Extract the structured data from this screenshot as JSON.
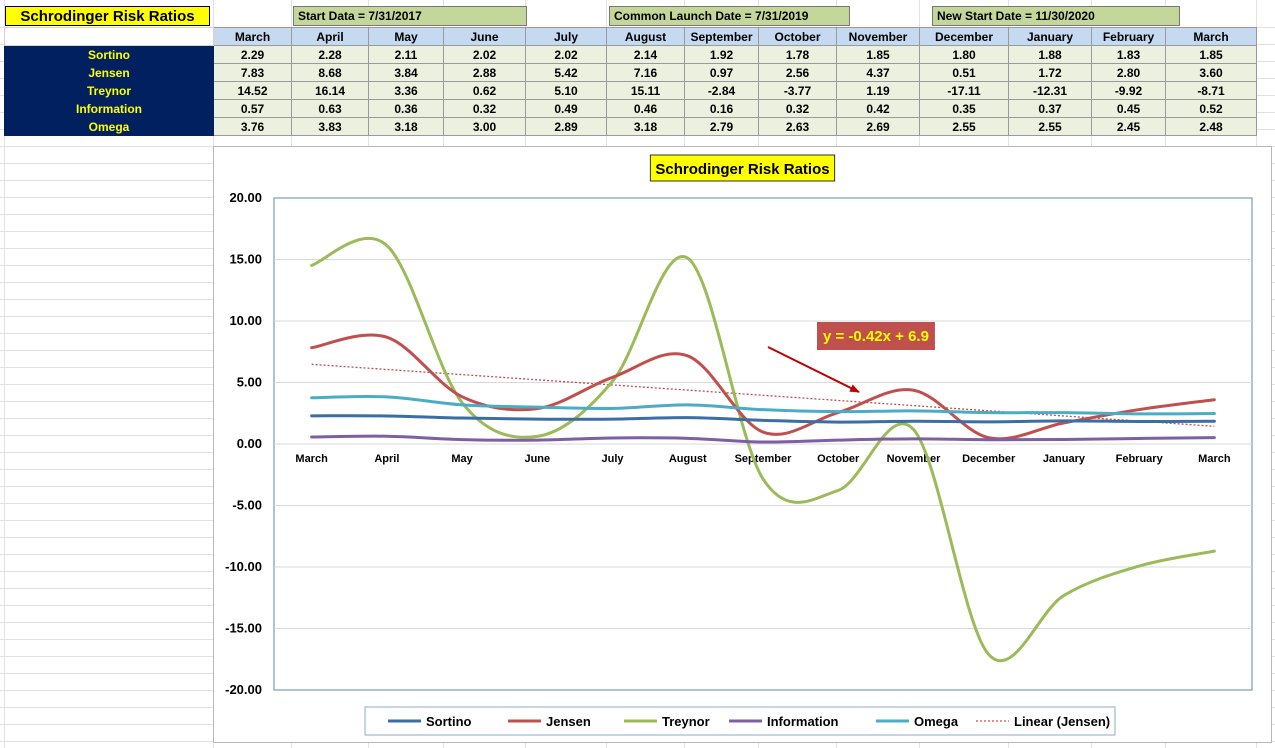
{
  "sheet": {
    "title": "Schrodinger Risk Ratios",
    "notes": {
      "start": "Start Data = 7/31/2017",
      "common": "Common Launch Date = 7/31/2019",
      "new": "New Start Date = 11/30/2020"
    },
    "colors": {
      "title_bg": "#ffff00",
      "note_bg": "#c4d79b",
      "month_header_bg": "#c5d9f1",
      "row_header_bg": "#002060",
      "row_header_text": "#ffff00",
      "cell_bg": "#ebf1de"
    }
  },
  "table": {
    "months": [
      "March",
      "April",
      "May",
      "June",
      "July",
      "August",
      "September",
      "October",
      "November",
      "December",
      "January",
      "February",
      "March"
    ],
    "rows": [
      {
        "label": "Sortino",
        "values": [
          "2.29",
          "2.28",
          "2.11",
          "2.02",
          "2.02",
          "2.14",
          "1.92",
          "1.78",
          "1.85",
          "1.80",
          "1.88",
          "1.83",
          "1.85"
        ]
      },
      {
        "label": "Jensen",
        "values": [
          "7.83",
          "8.68",
          "3.84",
          "2.88",
          "5.42",
          "7.16",
          "0.97",
          "2.56",
          "4.37",
          "0.51",
          "1.72",
          "2.80",
          "3.60"
        ]
      },
      {
        "label": "Treynor",
        "values": [
          "14.52",
          "16.14",
          "3.36",
          "0.62",
          "5.10",
          "15.11",
          "-2.84",
          "-3.77",
          "1.19",
          "-17.11",
          "-12.31",
          "-9.92",
          "-8.71"
        ]
      },
      {
        "label": "Information",
        "values": [
          "0.57",
          "0.63",
          "0.36",
          "0.32",
          "0.49",
          "0.46",
          "0.16",
          "0.32",
          "0.42",
          "0.35",
          "0.37",
          "0.45",
          "0.52"
        ]
      },
      {
        "label": "Omega",
        "values": [
          "3.76",
          "3.83",
          "3.18",
          "3.00",
          "2.89",
          "3.18",
          "2.79",
          "2.63",
          "2.69",
          "2.55",
          "2.55",
          "2.45",
          "2.48"
        ]
      }
    ]
  },
  "chart_data": {
    "type": "line",
    "title": "Schrodinger Risk Ratios",
    "categories": [
      "March",
      "April",
      "May",
      "June",
      "July",
      "August",
      "September",
      "October",
      "November",
      "December",
      "January",
      "February",
      "March"
    ],
    "ylim": [
      -20,
      20
    ],
    "y_ticks": [
      "20.00",
      "15.00",
      "10.00",
      "5.00",
      "0.00",
      "-5.00",
      "-10.00",
      "-15.00",
      "-20.00"
    ],
    "grid": "horizontal",
    "smooth": true,
    "legend_position": "bottom",
    "series": [
      {
        "name": "Sortino",
        "color": "#3a6ea5",
        "values": [
          2.29,
          2.28,
          2.11,
          2.02,
          2.02,
          2.14,
          1.92,
          1.78,
          1.85,
          1.8,
          1.88,
          1.83,
          1.85
        ]
      },
      {
        "name": "Jensen",
        "color": "#c0504d",
        "values": [
          7.83,
          8.68,
          3.84,
          2.88,
          5.42,
          7.16,
          0.97,
          2.56,
          4.37,
          0.51,
          1.72,
          2.8,
          3.6
        ]
      },
      {
        "name": "Treynor",
        "color": "#9bbb59",
        "values": [
          14.52,
          16.14,
          3.36,
          0.62,
          5.1,
          15.11,
          -2.84,
          -3.77,
          1.19,
          -17.11,
          -12.31,
          -9.92,
          -8.71
        ]
      },
      {
        "name": "Information",
        "color": "#7f5fa3",
        "values": [
          0.57,
          0.63,
          0.36,
          0.32,
          0.49,
          0.46,
          0.16,
          0.32,
          0.42,
          0.35,
          0.37,
          0.45,
          0.52
        ]
      },
      {
        "name": "Omega",
        "color": "#4bacc6",
        "values": [
          3.76,
          3.83,
          3.18,
          3.0,
          2.89,
          3.18,
          2.79,
          2.63,
          2.69,
          2.55,
          2.55,
          2.45,
          2.48
        ]
      }
    ],
    "trendline": {
      "name": "Linear (Jensen)",
      "color": "#c0504d",
      "slope": -0.42,
      "intercept": 6.9,
      "label": "y = -0.42x + 6.9",
      "label_bg": "#c0504d",
      "label_text_color": "#ffff00"
    }
  }
}
